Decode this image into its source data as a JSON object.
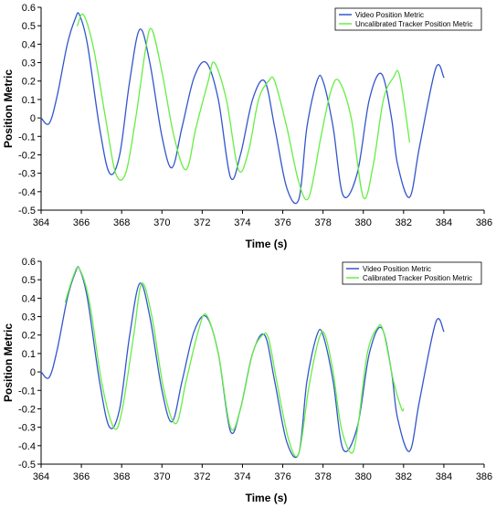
{
  "colors": {
    "video": "#3355cc",
    "tracker": "#66ee44"
  },
  "chart_data": [
    {
      "type": "line",
      "xlabel": "Time (s)",
      "ylabel": "Position Metric",
      "xlim": [
        364,
        386
      ],
      "ylim": [
        -0.5,
        0.6
      ],
      "x_ticks": [
        364,
        366,
        368,
        370,
        372,
        374,
        376,
        378,
        380,
        382,
        384,
        386
      ],
      "y_ticks": [
        -0.5,
        -0.4,
        -0.3,
        -0.2,
        -0.1,
        0,
        0.1,
        0.2,
        0.3,
        0.4,
        0.5,
        0.6
      ],
      "grid": false,
      "legend_position": "top-right",
      "series": [
        {
          "name": "Video Position Metric",
          "color": "#3355cc",
          "x": [
            364.0,
            364.4,
            364.8,
            365.3,
            365.7,
            365.9,
            366.3,
            366.9,
            367.4,
            367.9,
            368.4,
            368.9,
            369.4,
            370.0,
            370.5,
            371.0,
            371.6,
            372.2,
            372.8,
            373.4,
            373.9,
            374.5,
            375.1,
            375.6,
            376.2,
            376.8,
            377.2,
            377.7,
            378.0,
            378.5,
            379.0,
            379.7,
            380.3,
            380.9,
            381.4,
            381.7,
            382.3,
            382.8,
            383.6,
            384.0
          ],
          "y": [
            0.0,
            -0.03,
            0.12,
            0.4,
            0.54,
            0.56,
            0.4,
            -0.05,
            -0.3,
            -0.2,
            0.2,
            0.48,
            0.3,
            -0.1,
            -0.27,
            -0.05,
            0.22,
            0.3,
            0.1,
            -0.32,
            -0.2,
            0.1,
            0.2,
            -0.05,
            -0.38,
            -0.44,
            -0.05,
            0.2,
            0.2,
            -0.05,
            -0.42,
            -0.3,
            0.1,
            0.24,
            0.0,
            -0.25,
            -0.43,
            -0.15,
            0.27,
            0.22
          ]
        },
        {
          "name": "Uncalibrated Tracker Position Metric",
          "color": "#66ee44",
          "x": [
            365.8,
            366.1,
            366.6,
            367.2,
            367.7,
            368.2,
            368.7,
            369.2,
            369.5,
            370.0,
            370.6,
            371.2,
            371.7,
            372.3,
            372.6,
            373.2,
            373.8,
            374.3,
            374.8,
            375.3,
            375.6,
            376.2,
            376.8,
            377.3,
            377.9,
            378.4,
            378.8,
            379.4,
            380.0,
            380.5,
            381.0,
            381.5,
            381.8,
            382.3
          ],
          "y": [
            0.5,
            0.56,
            0.38,
            0.0,
            -0.3,
            -0.3,
            0.0,
            0.38,
            0.48,
            0.25,
            -0.1,
            -0.28,
            -0.05,
            0.2,
            0.3,
            0.1,
            -0.28,
            -0.18,
            0.1,
            0.2,
            0.2,
            -0.05,
            -0.35,
            -0.43,
            -0.1,
            0.15,
            0.2,
            0.0,
            -0.43,
            -0.25,
            0.1,
            0.22,
            0.23,
            -0.13
          ]
        }
      ]
    },
    {
      "type": "line",
      "xlabel": "Time (s)",
      "ylabel": "Position Metric",
      "xlim": [
        364,
        386
      ],
      "ylim": [
        -0.5,
        0.6
      ],
      "x_ticks": [
        364,
        366,
        368,
        370,
        372,
        374,
        376,
        378,
        380,
        382,
        384,
        386
      ],
      "y_ticks": [
        -0.5,
        -0.4,
        -0.3,
        -0.2,
        -0.1,
        0,
        0.1,
        0.2,
        0.3,
        0.4,
        0.5,
        0.6
      ],
      "grid": false,
      "legend_position": "top-right",
      "series": [
        {
          "name": "Video Position Metric",
          "color": "#3355cc",
          "x": [
            364.0,
            364.4,
            364.8,
            365.3,
            365.7,
            365.9,
            366.3,
            366.9,
            367.4,
            367.9,
            368.4,
            368.9,
            369.4,
            370.0,
            370.5,
            371.0,
            371.6,
            372.2,
            372.8,
            373.4,
            373.9,
            374.5,
            375.1,
            375.6,
            376.2,
            376.8,
            377.2,
            377.7,
            378.0,
            378.5,
            379.0,
            379.7,
            380.3,
            380.9,
            381.4,
            381.7,
            382.3,
            382.8,
            383.6,
            384.0
          ],
          "y": [
            0.0,
            -0.03,
            0.12,
            0.4,
            0.54,
            0.56,
            0.4,
            -0.05,
            -0.3,
            -0.2,
            0.2,
            0.48,
            0.3,
            -0.1,
            -0.27,
            -0.05,
            0.22,
            0.3,
            0.1,
            -0.32,
            -0.2,
            0.1,
            0.2,
            -0.05,
            -0.38,
            -0.44,
            -0.05,
            0.2,
            0.2,
            -0.05,
            -0.42,
            -0.3,
            0.1,
            0.24,
            0.0,
            -0.25,
            -0.43,
            -0.15,
            0.27,
            0.22
          ]
        },
        {
          "name": "Calibrated Tracker Position Metric",
          "color": "#66ee44",
          "x": [
            365.2,
            365.6,
            365.9,
            366.4,
            367.0,
            367.6,
            368.0,
            368.6,
            369.0,
            369.5,
            370.1,
            370.7,
            371.2,
            371.8,
            372.2,
            372.8,
            373.4,
            373.9,
            374.5,
            375.0,
            375.3,
            375.7,
            376.3,
            376.8,
            377.3,
            377.8,
            378.1,
            378.5,
            378.9,
            379.4,
            379.7,
            380.2,
            380.7,
            381.0,
            381.5,
            381.9,
            382.0
          ],
          "y": [
            0.38,
            0.52,
            0.56,
            0.38,
            -0.05,
            -0.3,
            -0.22,
            0.2,
            0.48,
            0.3,
            -0.1,
            -0.28,
            -0.05,
            0.22,
            0.31,
            0.1,
            -0.3,
            -0.2,
            0.1,
            0.2,
            0.18,
            -0.05,
            -0.37,
            -0.44,
            -0.08,
            0.18,
            0.2,
            0.0,
            -0.3,
            -0.44,
            -0.32,
            0.1,
            0.24,
            0.22,
            -0.05,
            -0.2,
            -0.2
          ]
        }
      ]
    }
  ]
}
